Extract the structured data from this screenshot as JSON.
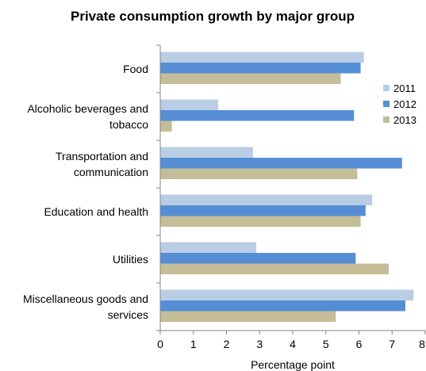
{
  "chart_data": {
    "type": "bar",
    "orientation": "horizontal",
    "title": "Private consumption growth by major group",
    "xlabel": "Percentage point",
    "ylabel": "",
    "xlim": [
      0,
      8
    ],
    "xticks": [
      0,
      1,
      2,
      3,
      4,
      5,
      6,
      7,
      8
    ],
    "grid": false,
    "legend_position": "right",
    "categories": [
      [
        "Food"
      ],
      [
        "Alcoholic beverages and",
        "tobacco"
      ],
      [
        "Transportation and",
        "communication"
      ],
      [
        "Education and health"
      ],
      [
        "Utilities"
      ],
      [
        "Miscellaneous goods and",
        "services"
      ]
    ],
    "series": [
      {
        "name": "2011",
        "color": "#b9cde5",
        "values": [
          6.15,
          1.75,
          2.8,
          6.4,
          2.9,
          7.65
        ]
      },
      {
        "name": "2012",
        "color": "#558ed5",
        "values": [
          6.05,
          5.85,
          7.3,
          6.2,
          5.9,
          7.4
        ]
      },
      {
        "name": "2013",
        "color": "#c4bd97",
        "values": [
          5.45,
          0.35,
          5.95,
          6.05,
          6.9,
          5.3
        ]
      }
    ]
  }
}
